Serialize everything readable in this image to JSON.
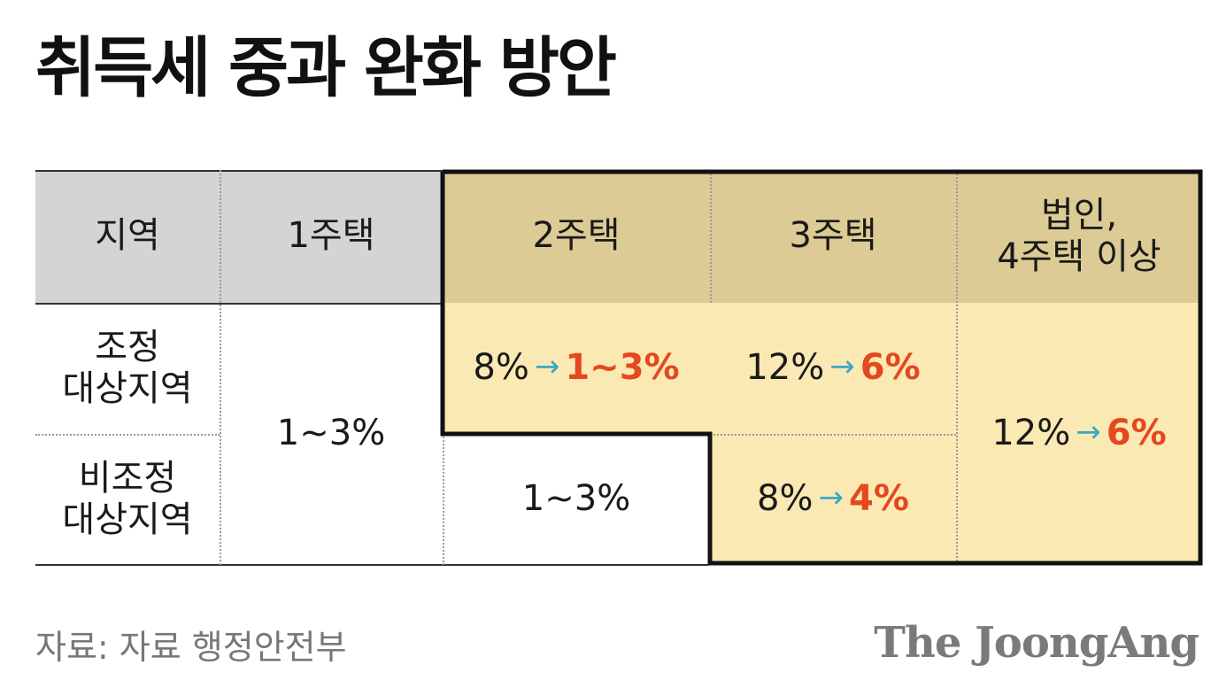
{
  "title": "취득세 중과 완화 방안",
  "source": "자료: 자료 행정안전부",
  "logo": "The JoongAng",
  "colors": {
    "header_gray": "#d4d4d4",
    "header_tan": "#dccb94",
    "highlight": "#fbe9b3",
    "arrow": "#3aa8c7",
    "new_rate": "#e4481f"
  },
  "chart_data": {
    "type": "table",
    "columns": [
      "지역",
      "1주택",
      "2주택",
      "3주택",
      "법인,\n4주택 이상"
    ],
    "rows": [
      {
        "region": "조정\n대상지역",
        "one_house": "1~3%",
        "two_house": {
          "old": "8%",
          "new": "1~3%"
        },
        "three_house": {
          "old": "12%",
          "new": "6%"
        },
        "corp_four_plus": {
          "old": "12%",
          "new": "6%"
        }
      },
      {
        "region": "비조정\n대상지역",
        "one_house": "1~3%",
        "two_house": "1~3%",
        "three_house": {
          "old": "8%",
          "new": "4%"
        },
        "corp_four_plus": {
          "old": "12%",
          "new": "6%"
        }
      }
    ]
  }
}
